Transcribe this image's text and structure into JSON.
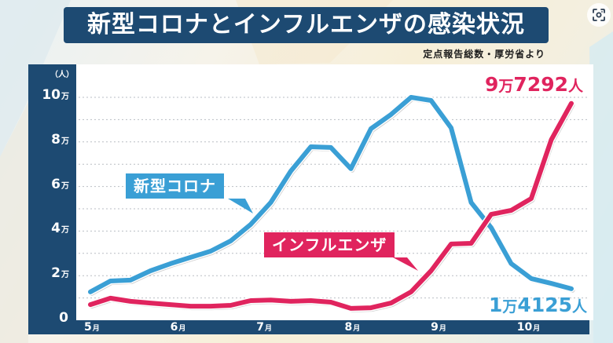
{
  "title": "新型コロナとインフルエンザの感染状況",
  "source": "定点報告総数・厚労省より",
  "lens_button": {
    "icon": "camera-lens-icon"
  },
  "colors": {
    "covid": "#3a9fd5",
    "flu": "#e0245e",
    "axis_panel": "#1d4a72",
    "title_bg": "#1d4a72"
  },
  "callouts": {
    "covid": "新型コロナ",
    "flu": "インフルエンザ"
  },
  "end_labels": {
    "flu": {
      "man": "9",
      "man_unit": "万",
      "rest": "7292",
      "unit": "人"
    },
    "covid": {
      "man": "1",
      "man_unit": "万",
      "rest": "4125",
      "unit": "人"
    }
  },
  "chart_data": {
    "type": "line",
    "title": "新型コロナとインフルエンザの感染状況",
    "subtitle": "定点報告総数・厚労省より",
    "xlabel": "",
    "ylabel": "（人）",
    "y_unit_label": "（人）",
    "ylim": [
      0,
      100000
    ],
    "yticks": [
      {
        "value": 0,
        "num": "0",
        "unit": ""
      },
      {
        "value": 20000,
        "num": "2",
        "unit": "万"
      },
      {
        "value": 40000,
        "num": "4",
        "unit": "万"
      },
      {
        "value": 60000,
        "num": "6",
        "unit": "万"
      },
      {
        "value": 80000,
        "num": "8",
        "unit": "万"
      },
      {
        "value": 100000,
        "num": "10",
        "unit": "万"
      }
    ],
    "grid": true,
    "grid_minor_step": 10000,
    "xticks": [
      {
        "index": 0,
        "num": "5",
        "unit": "月"
      },
      {
        "index": 4.3,
        "num": "6",
        "unit": "月"
      },
      {
        "index": 8.6,
        "num": "7",
        "unit": "月"
      },
      {
        "index": 13,
        "num": "8",
        "unit": "月"
      },
      {
        "index": 17.3,
        "num": "9",
        "unit": "月"
      },
      {
        "index": 21.6,
        "num": "10",
        "unit": "月"
      }
    ],
    "x_count": 25,
    "legend": "inline callouts",
    "series": [
      {
        "name": "新型コロナ",
        "color": "#3a9fd5",
        "values": [
          12700,
          17600,
          18000,
          22200,
          25400,
          28200,
          31000,
          35600,
          43000,
          52800,
          66900,
          77800,
          77500,
          68000,
          85900,
          92300,
          100000,
          98600,
          86300,
          52800,
          41500,
          25400,
          18700,
          16500,
          14125
        ]
      },
      {
        "name": "インフルエンザ",
        "color": "#e0245e",
        "values": [
          7000,
          9900,
          8500,
          7700,
          7000,
          6300,
          6300,
          6700,
          8800,
          9100,
          8500,
          8800,
          8100,
          5300,
          5600,
          7700,
          12700,
          22200,
          34200,
          34500,
          47500,
          49300,
          54600,
          81000,
          97292
        ]
      }
    ]
  }
}
